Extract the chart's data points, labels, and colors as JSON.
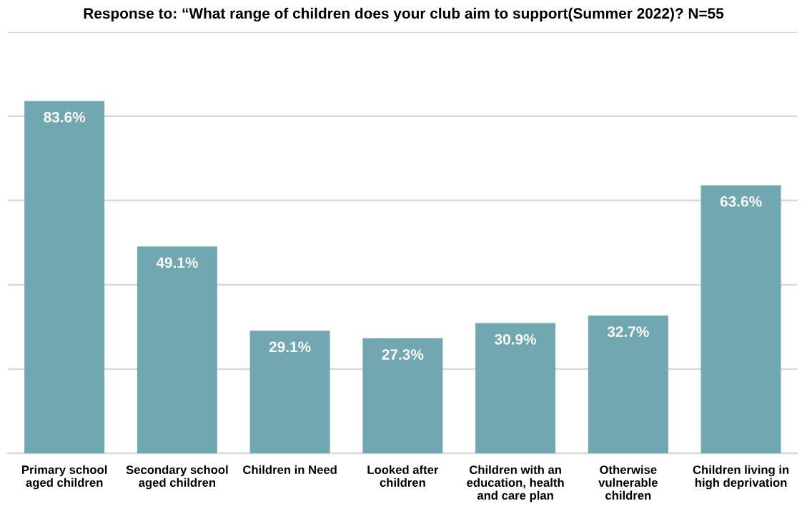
{
  "chart_data": {
    "type": "bar",
    "title": "Response to: “What range of children does your club aim to support(Summer 2022)? N=55",
    "categories": [
      "Primary school\naged children",
      "Secondary school\naged children",
      "Children in Need",
      "Looked after\nchildren",
      "Children with an\neducation, health\nand care plan",
      "Otherwise\nvulnerable\nchildren",
      "Children living in\nhigh deprivation"
    ],
    "values": [
      83.6,
      49.1,
      29.1,
      27.3,
      30.9,
      32.7,
      63.6
    ],
    "color": "#70a7b0",
    "value_labels": [
      "83.6%",
      "49.1%",
      "29.1%",
      "27.3%",
      "30.9%",
      "32.7%",
      "63.6%"
    ],
    "ylim": [
      0,
      100
    ],
    "yticks": [
      {
        "value": 0,
        "label": null
      },
      {
        "value": 20,
        "label": null
      },
      {
        "value": 40,
        "label": null
      },
      {
        "value": 60,
        "label": null
      },
      {
        "value": 80,
        "label": null
      },
      {
        "value": 100,
        "label": null
      }
    ],
    "tick_labels": "x",
    "grid": "y",
    "legend": false
  }
}
